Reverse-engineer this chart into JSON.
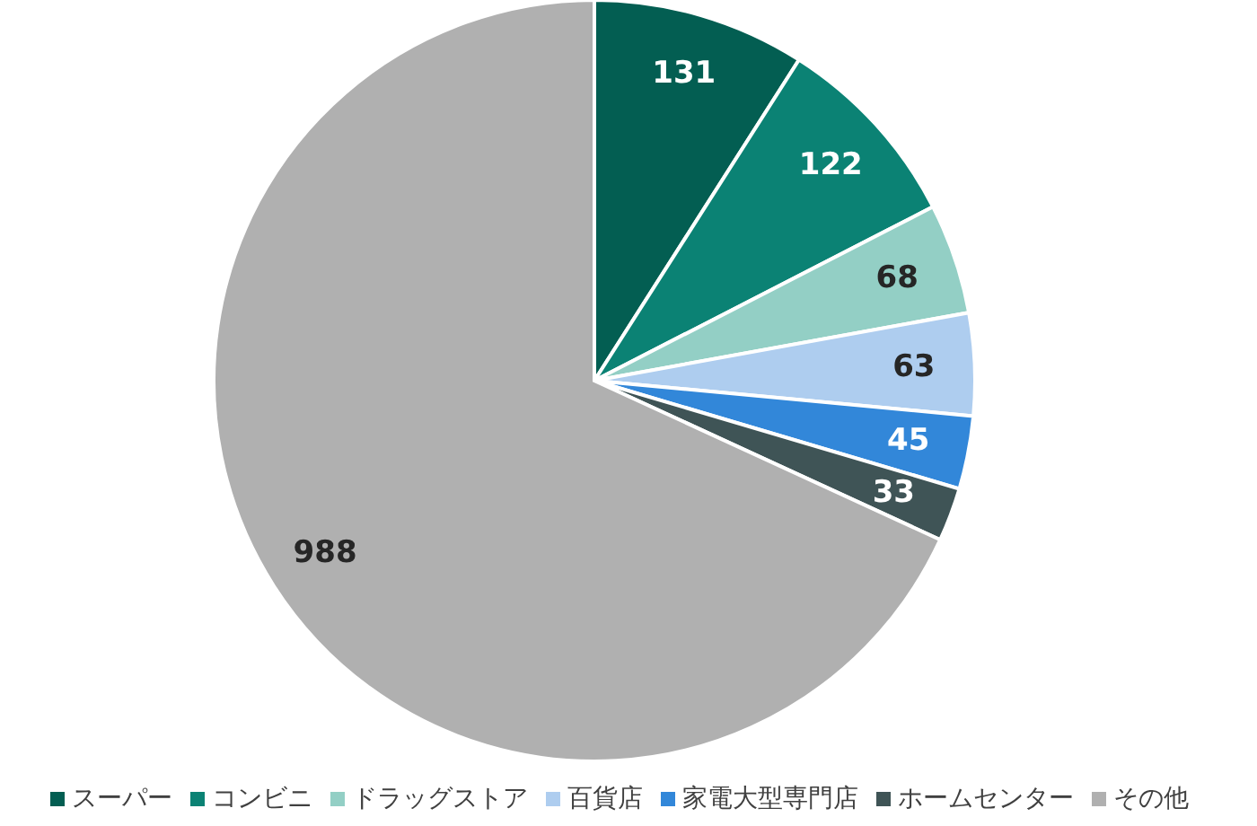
{
  "chart_data": {
    "type": "pie",
    "categories": [
      "スーパー",
      "コンビニ",
      "ドラッグストア",
      "百貨店",
      "家電大型専門店",
      "ホームセンター",
      "その他"
    ],
    "values": [
      131,
      122,
      68,
      63,
      45,
      33,
      988
    ],
    "colors": [
      "#035e52",
      "#0b8274",
      "#93cfc5",
      "#aecdef",
      "#3287d9",
      "#3f5456",
      "#b0b0b0"
    ],
    "data_labels": true,
    "legend": "bottom"
  }
}
